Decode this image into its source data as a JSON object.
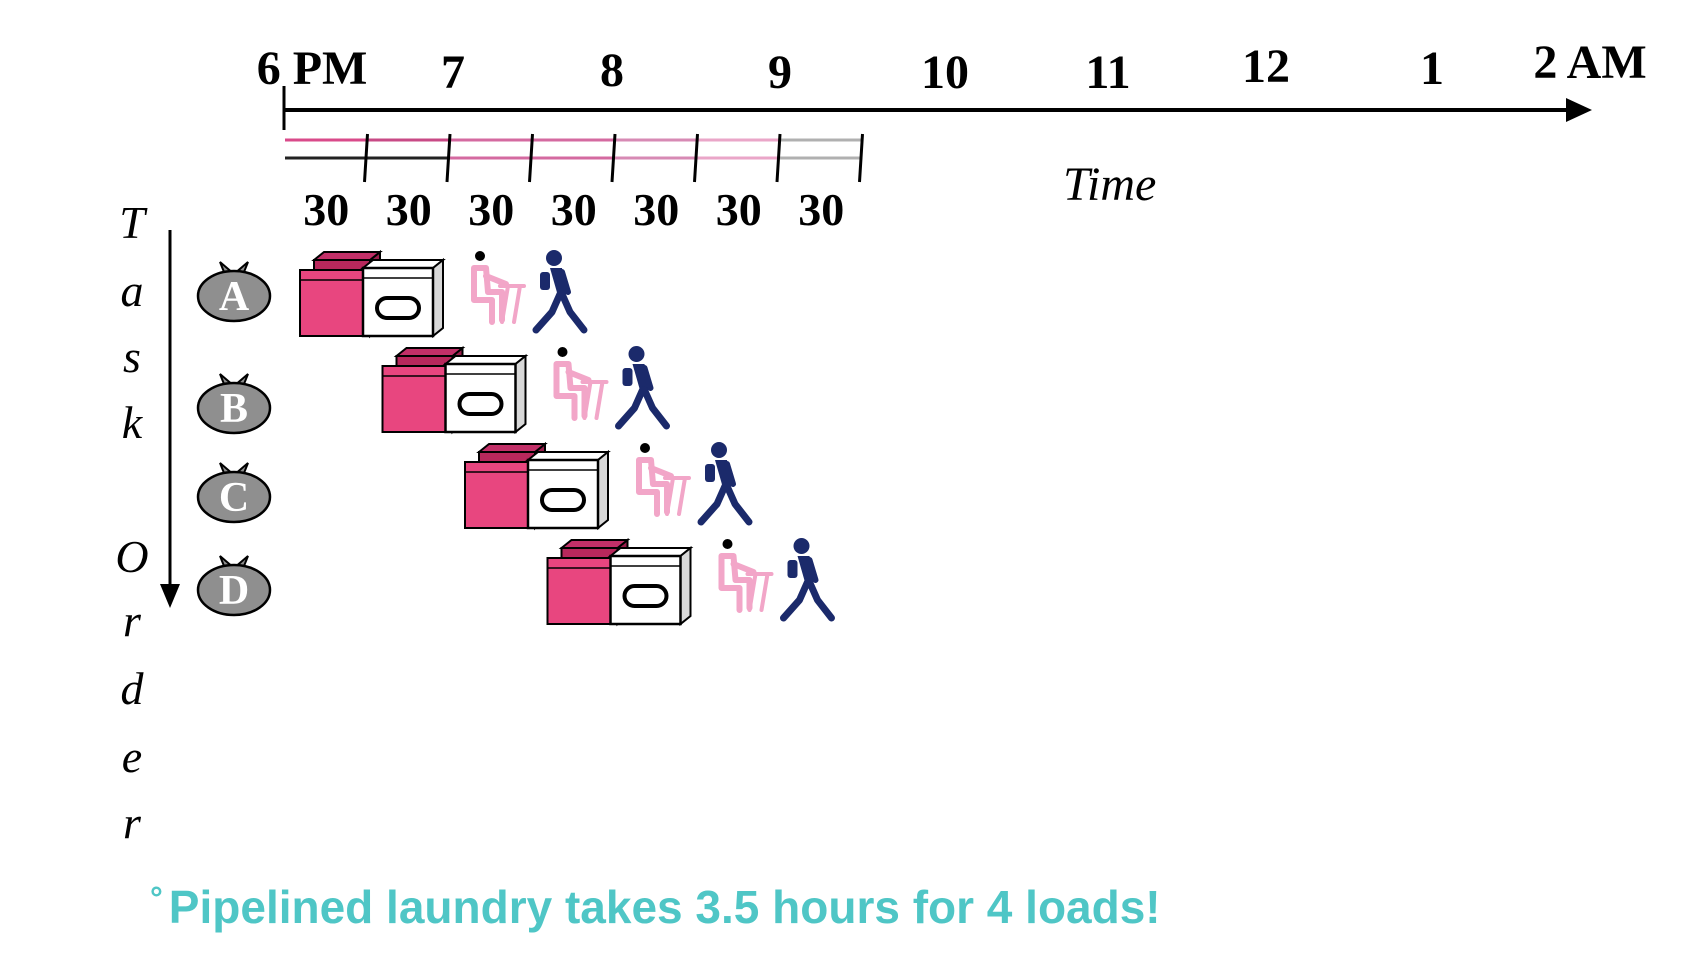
{
  "hour_ticks": [
    "6 PM",
    "7",
    "8",
    "9",
    "10",
    "11",
    "12",
    "1",
    "2 AM"
  ],
  "axis_title": "Time",
  "slot_minutes": [
    "30",
    "30",
    "30",
    "30",
    "30",
    "30",
    "30"
  ],
  "vertical_label_letters": [
    "T",
    "a",
    "s",
    "k",
    "O",
    "r",
    "d",
    "e",
    "r"
  ],
  "tasks": [
    {
      "label": "A",
      "start_slot": 0
    },
    {
      "label": "B",
      "start_slot": 1
    },
    {
      "label": "C",
      "start_slot": 2
    },
    {
      "label": "D",
      "start_slot": 3
    }
  ],
  "stages": [
    "washer-icon",
    "dryer-icon",
    "folder-icon",
    "stasher-icon"
  ],
  "colors": {
    "washer": "#e8467f",
    "folder": "#f2a6c8",
    "stasher": "#1b2a6b",
    "bag": "#8f8f8f",
    "caption": "#4fc6c6"
  },
  "caption": {
    "bullet": "°",
    "text": "Pipelined laundry takes 3.5 hours for 4 loads!"
  }
}
